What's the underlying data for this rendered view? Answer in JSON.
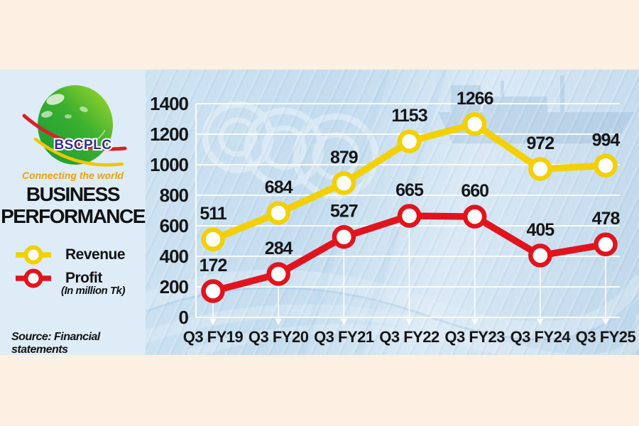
{
  "branding": {
    "logo_text": "BSCPLC",
    "tagline": "Connecting the world",
    "title_line1": "BUSINESS",
    "title_line2": "PERFORMANCE"
  },
  "legend": {
    "revenue_label": "Revenue",
    "profit_label": "Profit",
    "unit_note": "(In million Tk)"
  },
  "source": "Source: Financial statements",
  "colors": {
    "revenue_yellow": "#f2d002",
    "profit_red": "#e1141e",
    "background_cream": "#fcf0e2",
    "panel_blue": "#ddecf7",
    "chart_blue": "#c3dcee",
    "grid_white": "#ffffff",
    "text_black": "#151515",
    "logo_blue": "#2d3192",
    "tagline_orange": "#f2a007",
    "logo_green_dark": "#169b3a",
    "logo_green_light": "#a8da2b"
  },
  "chart_data": {
    "type": "line",
    "title": "Business Performance",
    "unit": "In million Tk",
    "categories": [
      "Q3 FY19",
      "Q3 FY20",
      "Q3 FY21",
      "Q3 FY22",
      "Q3 FY23",
      "Q3 FY24",
      "Q3 FY25"
    ],
    "series": [
      {
        "name": "Revenue",
        "color": "#f2d002",
        "values": [
          511,
          684,
          879,
          1153,
          1266,
          972,
          994
        ]
      },
      {
        "name": "Profit",
        "color": "#e1141e",
        "values": [
          172,
          284,
          527,
          665,
          660,
          405,
          478
        ]
      }
    ],
    "ylim": [
      0,
      1400
    ],
    "yticks": [
      0,
      200,
      400,
      600,
      800,
      1000,
      1200,
      1400
    ],
    "grid": true,
    "drop_arrow_series": "Profit",
    "legend_position": "left",
    "data_labels": true
  }
}
